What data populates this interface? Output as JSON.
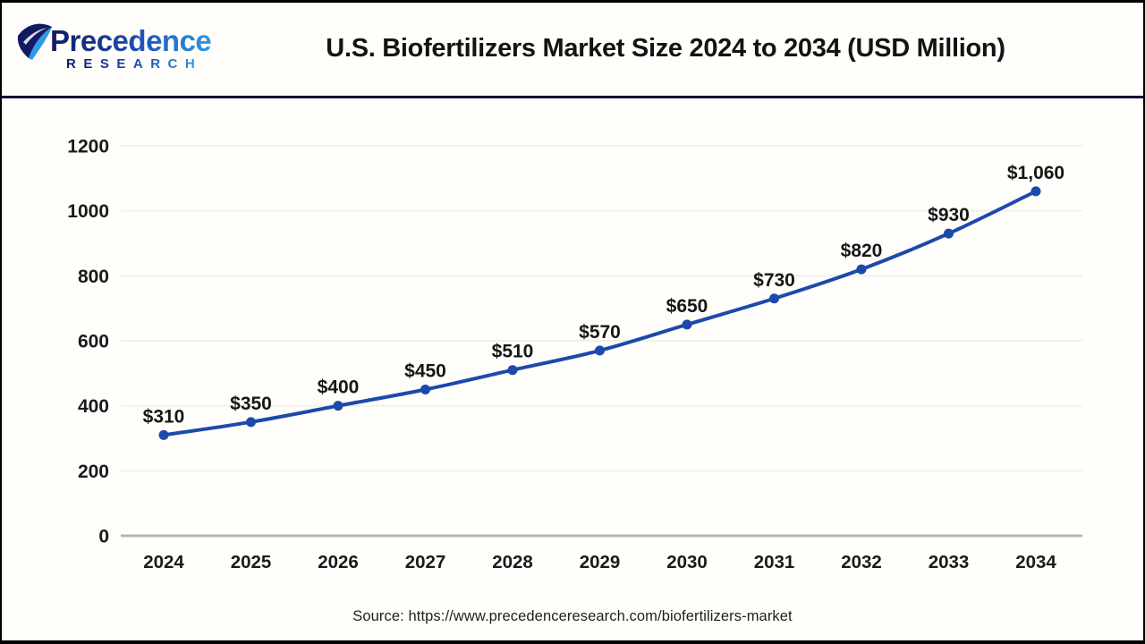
{
  "header": {
    "logo": {
      "line1": "Precedence",
      "line2": "RESEARCH"
    },
    "title": "U.S. Biofertilizers Market Size 2024 to 2034 (USD Million)"
  },
  "footer": {
    "source": "Source: https://www.precedenceresearch.com/biofertilizers-market"
  },
  "colors": {
    "brand_navy": "#131a63",
    "brand_blue": "#2f9ae8",
    "header_divider": "#0b0c33",
    "background": "#fffefa"
  },
  "chart_data": {
    "type": "line",
    "title": "U.S. Biofertilizers Market Size 2024 to 2034 (USD Million)",
    "categories": [
      "2024",
      "2025",
      "2026",
      "2027",
      "2028",
      "2029",
      "2030",
      "2031",
      "2032",
      "2033",
      "2034"
    ],
    "values": [
      310,
      350,
      400,
      450,
      510,
      570,
      650,
      730,
      820,
      930,
      1060
    ],
    "point_labels": [
      "$310",
      "$350",
      "$400",
      "$450",
      "$510",
      "$570",
      "$650",
      "$730",
      "$820",
      "$930",
      "$1,060"
    ],
    "xlabel": "",
    "ylabel": "",
    "ylim": [
      0,
      1200
    ],
    "yticks": [
      0,
      200,
      400,
      600,
      800,
      1000,
      1200
    ],
    "grid": true,
    "legend": "none",
    "line_color": "#1d49ac",
    "marker_color": "#1d49ac",
    "label_color": "#161616",
    "tick_color": "#1a1a1a",
    "grid_color": "#f2f0ec",
    "axis_color": "#b7b5b2"
  }
}
